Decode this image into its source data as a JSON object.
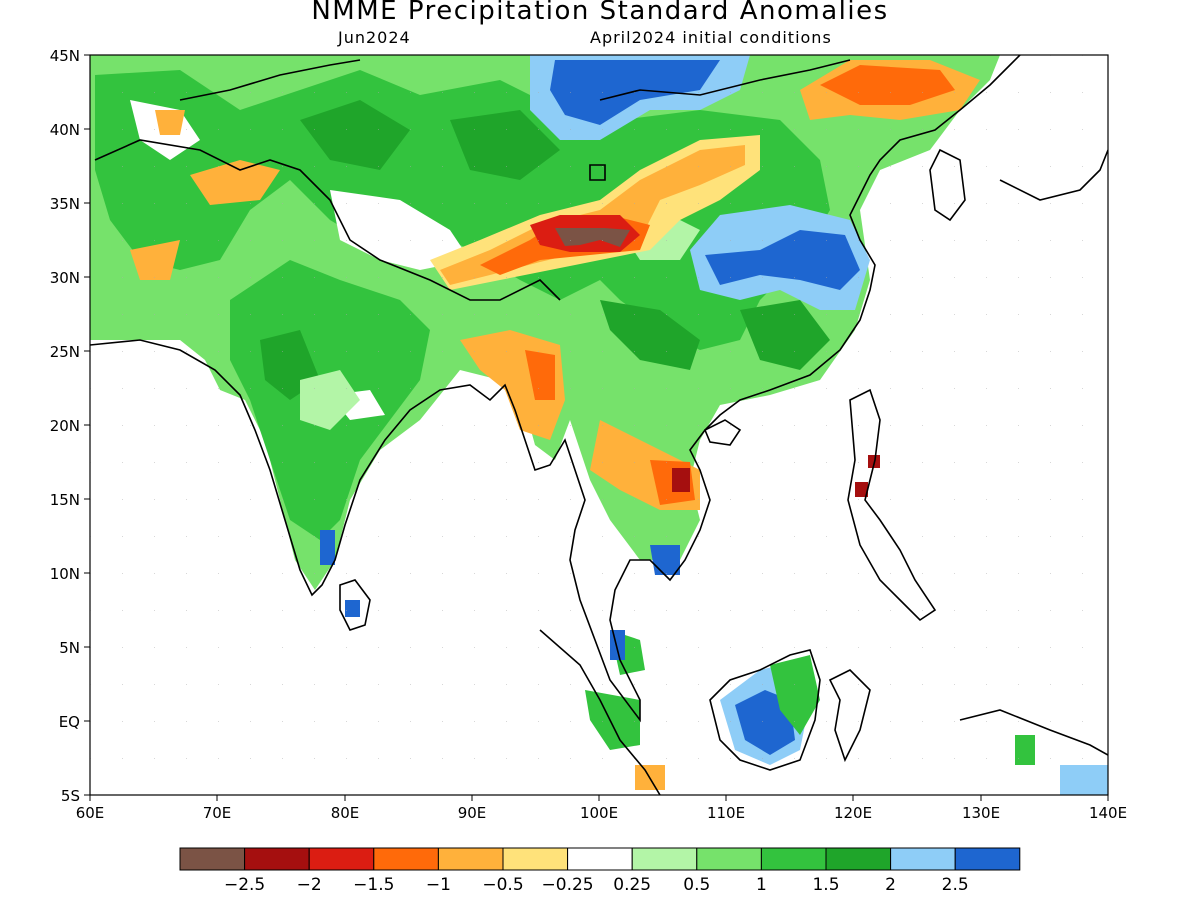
{
  "header": {
    "title": "NMME Precipitation Standard Anomalies",
    "valid_month": "Jun2024",
    "init": "April2024 initial conditions"
  },
  "axes": {
    "lon_ticks": [
      "60E",
      "70E",
      "80E",
      "90E",
      "100E",
      "110E",
      "120E",
      "130E",
      "140E"
    ],
    "lat_ticks": [
      "45N",
      "40N",
      "35N",
      "30N",
      "25N",
      "20N",
      "15N",
      "10N",
      "5N",
      "EQ",
      "5S"
    ]
  },
  "map_extent": {
    "lon": [
      60,
      140
    ],
    "lat": [
      -5,
      45
    ]
  },
  "colorbar": {
    "colors": [
      "#7b5345",
      "#a50f0f",
      "#db1d12",
      "#ff6a0a",
      "#ffb13b",
      "#ffe27a",
      "#ffffff",
      "#b3f5a7",
      "#76e26b",
      "#33c33e",
      "#1fa52a",
      "#8ecdf7",
      "#1e66d0"
    ],
    "labels": [
      "-2.5",
      "-2",
      "-1.5",
      "-1",
      "-0.5",
      "-0.25",
      "0.25",
      "0.5",
      "1",
      "1.5",
      "2",
      "2.5"
    ]
  }
}
